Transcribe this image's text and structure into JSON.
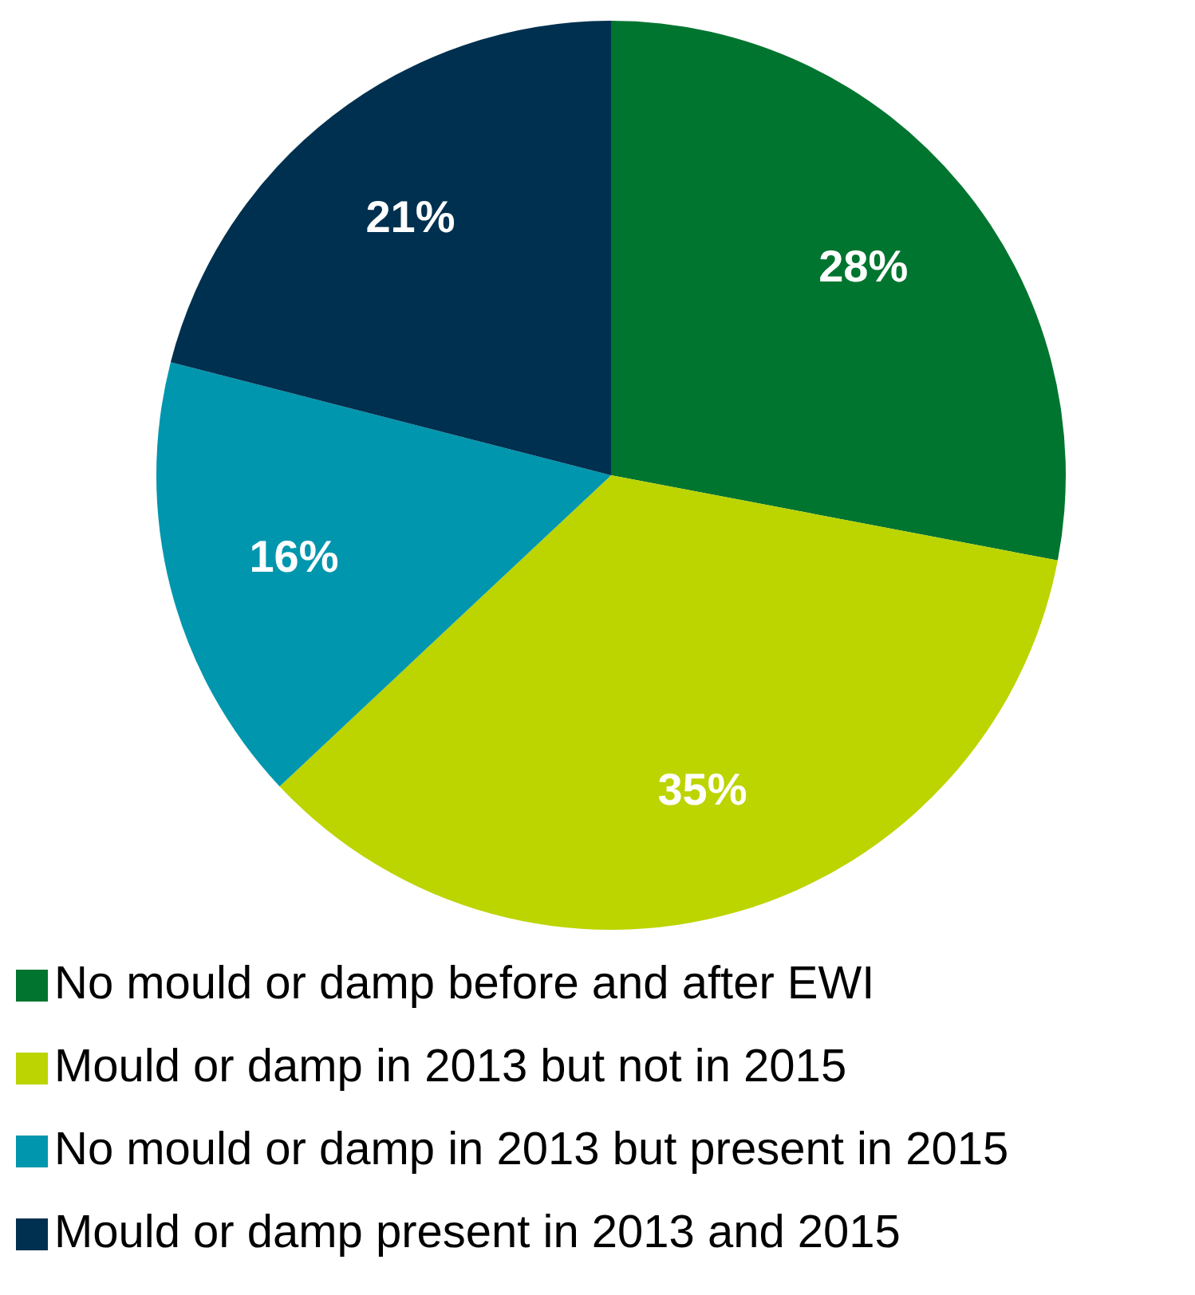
{
  "chart_data": {
    "type": "pie",
    "categories": [
      "No mould or damp before and after EWI",
      "Mould or damp in 2013 but not in 2015",
      "No mould or damp in 2013 but present in 2015",
      "Mould or damp present in 2013 and 2015"
    ],
    "values": [
      28,
      35,
      16,
      21
    ],
    "colors": [
      "#00752f",
      "#bcd400",
      "#0096ae",
      "#00304f"
    ],
    "value_labels": [
      "28%",
      "35%",
      "16%",
      "21%"
    ],
    "legend": "bottom"
  }
}
